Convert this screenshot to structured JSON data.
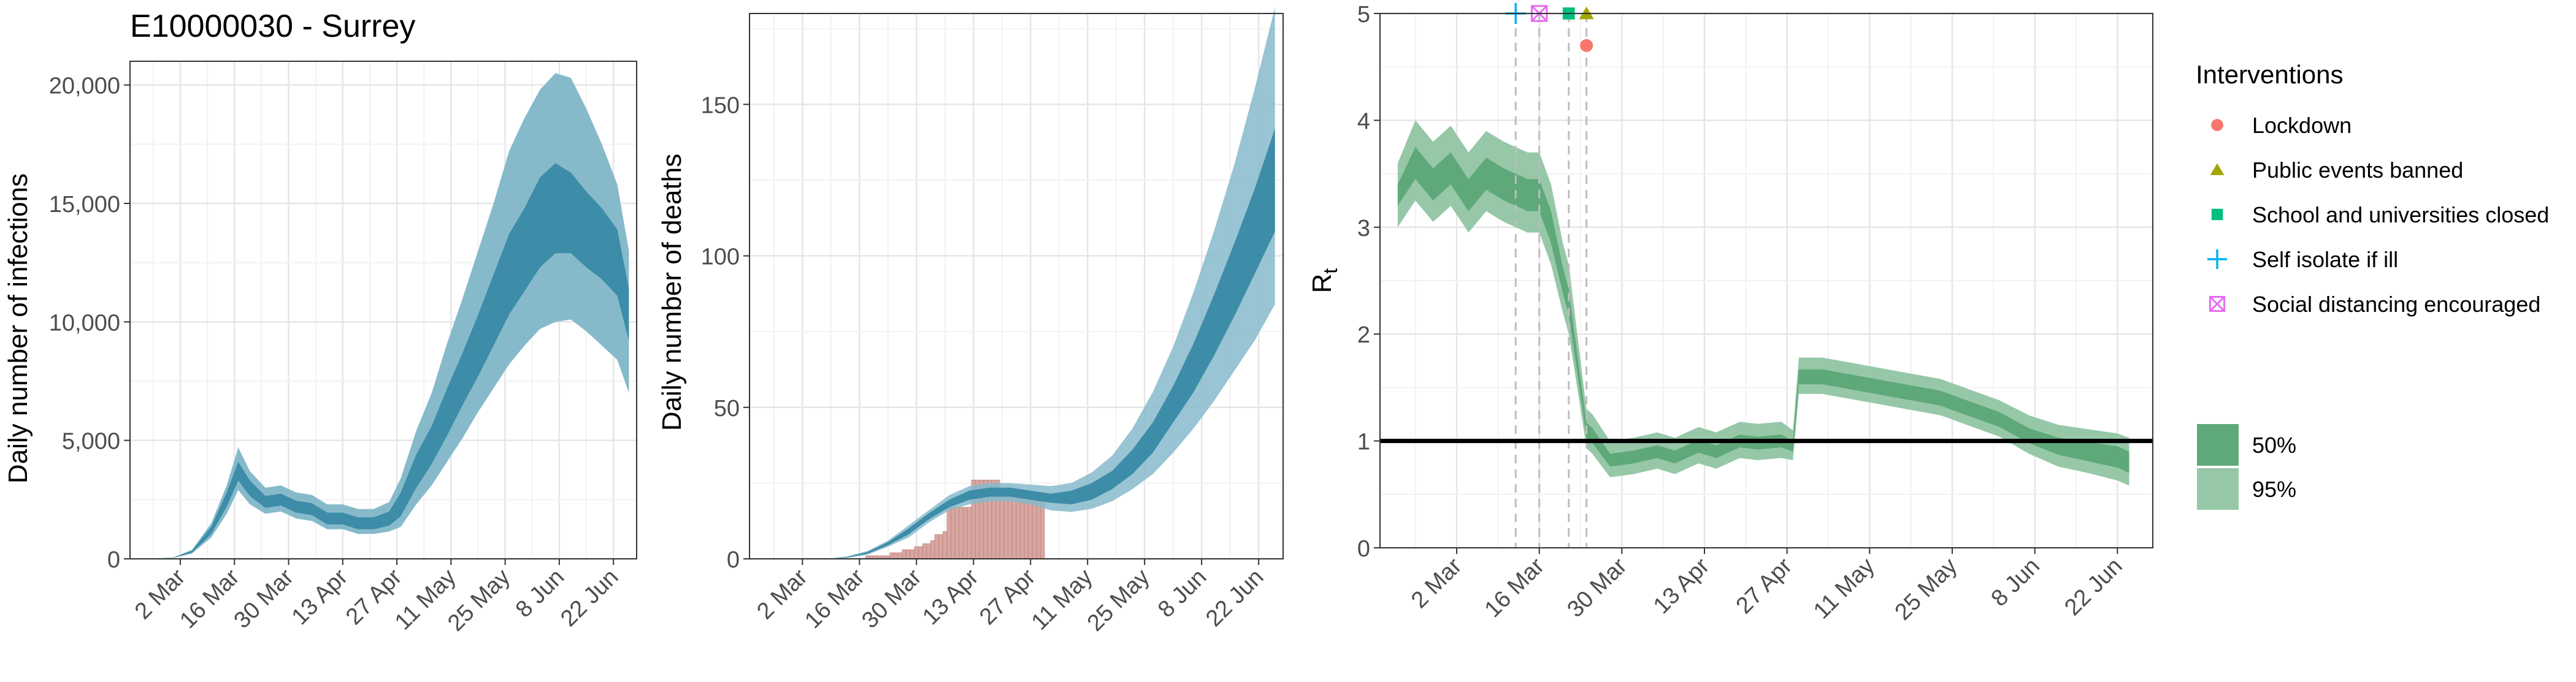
{
  "figure": {
    "region_code": "E10000030",
    "region_name": "Surrey",
    "title": "E10000030 - Surrey"
  },
  "colors": {
    "infections_95": "#86BACB",
    "infections_50": "#3D8CA8",
    "deaths_bars": "#D8A7A3",
    "deaths_bar_edge": "#C98F8A",
    "rt_95": "#96C8A8",
    "rt_50": "#5FA87A",
    "rt_line": "#4E9A69",
    "lockdown": "#F8766D",
    "public_events": "#A3A500",
    "schools": "#00BF7D",
    "self_isolate": "#00B0F6",
    "social_distancing": "#E76BF3",
    "grid_major": "#E6E6E6",
    "grid_minor": "#F2F2F2",
    "axis_text": "#4D4D4D"
  },
  "x_ticks": [
    "2 Mar",
    "16 Mar",
    "30 Mar",
    "13 Apr",
    "27 Apr",
    "11 May",
    "25 May",
    "8 Jun",
    "22 Jun"
  ],
  "chart_data": [
    {
      "type": "area",
      "name": "infections",
      "title": "E10000030 - Surrey",
      "xlabel": "",
      "ylabel": "Daily number of infections",
      "x_range": [
        "2020-02-18",
        "2020-06-28"
      ],
      "ylim": [
        0,
        21000
      ],
      "y_ticks": [
        "0",
        "5,000",
        "10,000",
        "15,000",
        "20,000"
      ],
      "y_tick_values": [
        0,
        5000,
        10000,
        15000,
        20000
      ],
      "x": [
        "2020-02-22",
        "2020-02-29",
        "2020-03-05",
        "2020-03-10",
        "2020-03-14",
        "2020-03-17",
        "2020-03-20",
        "2020-03-24",
        "2020-03-28",
        "2020-04-01",
        "2020-04-05",
        "2020-04-09",
        "2020-04-13",
        "2020-04-17",
        "2020-04-21",
        "2020-04-25",
        "2020-04-28",
        "2020-05-02",
        "2020-05-06",
        "2020-05-10",
        "2020-05-14",
        "2020-05-18",
        "2020-05-22",
        "2020-05-26",
        "2020-05-30",
        "2020-06-03",
        "2020-06-07",
        "2020-06-11",
        "2020-06-15",
        "2020-06-19",
        "2020-06-23",
        "2020-06-26"
      ],
      "median": [
        0,
        40,
        300,
        1200,
        2500,
        3700,
        3000,
        2400,
        2500,
        2200,
        2100,
        1700,
        1700,
        1500,
        1500,
        1700,
        2300,
        3700,
        4800,
        6200,
        7600,
        9000,
        10500,
        12000,
        13000,
        14200,
        14800,
        14600,
        13900,
        13300,
        12500,
        10300
      ],
      "ci50": [
        [
          0,
          35,
          260,
          1050,
          2200,
          3300,
          2650,
          2150,
          2250,
          1950,
          1850,
          1450,
          1450,
          1250,
          1250,
          1400,
          1800,
          3000,
          4000,
          5200,
          6500,
          7700,
          9000,
          10300,
          11300,
          12300,
          12900,
          12900,
          12300,
          11800,
          11100,
          9200
        ],
        [
          0,
          45,
          340,
          1350,
          2800,
          4100,
          3300,
          2650,
          2750,
          2450,
          2350,
          1950,
          1950,
          1750,
          1750,
          2000,
          2800,
          4400,
          5600,
          7200,
          8700,
          10300,
          12000,
          13700,
          14800,
          16100,
          16700,
          16300,
          15500,
          14800,
          13900,
          11400
        ]
      ],
      "ci95": [
        [
          0,
          30,
          220,
          900,
          1900,
          2900,
          2300,
          1900,
          2000,
          1700,
          1600,
          1250,
          1250,
          1050,
          1050,
          1150,
          1350,
          2300,
          3100,
          4100,
          5100,
          6200,
          7200,
          8200,
          9000,
          9700,
          10000,
          10100,
          9600,
          9000,
          8400,
          7000
        ],
        [
          0,
          50,
          380,
          1500,
          3100,
          4700,
          3700,
          3000,
          3100,
          2800,
          2700,
          2300,
          2300,
          2100,
          2100,
          2400,
          3400,
          5400,
          7000,
          9100,
          11000,
          13000,
          15000,
          17200,
          18600,
          19800,
          20500,
          20300,
          19000,
          17500,
          15800,
          13000
        ]
      ]
    },
    {
      "type": "area",
      "name": "deaths",
      "xlabel": "",
      "ylabel": "Daily number of deaths",
      "x_range": [
        "2020-02-18",
        "2020-06-28"
      ],
      "ylim": [
        0,
        180
      ],
      "y_ticks": [
        "0",
        "50",
        "100",
        "150"
      ],
      "y_tick_values": [
        0,
        50,
        100,
        150
      ],
      "observed_deaths": {
        "x": [
          "2020-03-16",
          "2020-03-17",
          "2020-03-18",
          "2020-03-19",
          "2020-03-20",
          "2020-03-21",
          "2020-03-22",
          "2020-03-23",
          "2020-03-24",
          "2020-03-25",
          "2020-03-26",
          "2020-03-27",
          "2020-03-28",
          "2020-03-29",
          "2020-03-30",
          "2020-03-31",
          "2020-04-01",
          "2020-04-02",
          "2020-04-03",
          "2020-04-04",
          "2020-04-05",
          "2020-04-06",
          "2020-04-07",
          "2020-04-08",
          "2020-04-09",
          "2020-04-10",
          "2020-04-11",
          "2020-04-12",
          "2020-04-13",
          "2020-04-14",
          "2020-04-15",
          "2020-04-16",
          "2020-04-17",
          "2020-04-18",
          "2020-04-19",
          "2020-04-20",
          "2020-04-21",
          "2020-04-22",
          "2020-04-23",
          "2020-04-24",
          "2020-04-25",
          "2020-04-26",
          "2020-04-27",
          "2020-04-28",
          "2020-04-29",
          "2020-04-30"
        ],
        "values": [
          0,
          0,
          1,
          1,
          1,
          1,
          1,
          1,
          2,
          2,
          2,
          3,
          3,
          3,
          4,
          4,
          5,
          5,
          6,
          8,
          8,
          9,
          17,
          17,
          17,
          17,
          17,
          17,
          26,
          26,
          26,
          26,
          26,
          26,
          26,
          22,
          22,
          22,
          22,
          22,
          22,
          22,
          22,
          22,
          22,
          22
        ]
      },
      "x": [
        "2020-03-01",
        "2020-03-08",
        "2020-03-13",
        "2020-03-18",
        "2020-03-23",
        "2020-03-28",
        "2020-04-02",
        "2020-04-07",
        "2020-04-12",
        "2020-04-17",
        "2020-04-22",
        "2020-04-27",
        "2020-05-02",
        "2020-05-07",
        "2020-05-12",
        "2020-05-17",
        "2020-05-22",
        "2020-05-27",
        "2020-06-01",
        "2020-06-06",
        "2020-06-11",
        "2020-06-16",
        "2020-06-21",
        "2020-06-26"
      ],
      "median": [
        0,
        0,
        0.5,
        2,
        5,
        9,
        14,
        18,
        21,
        22,
        22,
        21,
        20,
        20,
        22,
        26,
        32,
        40,
        51,
        63,
        77,
        92,
        108,
        125
      ],
      "ci50": [
        [
          0,
          0,
          0.4,
          1.7,
          4.5,
          8,
          13,
          17,
          19.5,
          20.5,
          20.5,
          19.5,
          18.5,
          18,
          19.5,
          23,
          28,
          35,
          45,
          55,
          67,
          80,
          94,
          108
        ],
        [
          0,
          0,
          0.6,
          2.3,
          5.5,
          10,
          15,
          19.5,
          22.5,
          23.5,
          23.5,
          22.5,
          21.5,
          22.5,
          25,
          29,
          36,
          45,
          57,
          71,
          87,
          104,
          122,
          142
        ]
      ],
      "ci95": [
        [
          0,
          0,
          0.3,
          1.4,
          4,
          7,
          12,
          16,
          18,
          19,
          19,
          18,
          16,
          15.5,
          16.5,
          19,
          23,
          28,
          35,
          43,
          52,
          62,
          72,
          84
        ],
        [
          0,
          0,
          0.8,
          2.6,
          6,
          11,
          16,
          21,
          24,
          25,
          25,
          24.5,
          24,
          25,
          28.5,
          34,
          43,
          55,
          70,
          88,
          108,
          130,
          155,
          182
        ]
      ]
    },
    {
      "type": "line",
      "name": "rt",
      "xlabel": "",
      "ylabel": "R",
      "ylabel_subscript": "t",
      "x_range": [
        "2020-02-18",
        "2020-06-28"
      ],
      "ylim": [
        0,
        5
      ],
      "y_ticks": [
        "0",
        "1",
        "2",
        "3",
        "4",
        "5"
      ],
      "y_tick_values": [
        0,
        1,
        2,
        3,
        4,
        5
      ],
      "reference_line": 1,
      "x": [
        "2020-02-21",
        "2020-02-24",
        "2020-02-27",
        "2020-03-01",
        "2020-03-04",
        "2020-03-07",
        "2020-03-10",
        "2020-03-12",
        "2020-03-14",
        "2020-03-16",
        "2020-03-18",
        "2020-03-20",
        "2020-03-21",
        "2020-03-22",
        "2020-03-23",
        "2020-03-24",
        "2020-03-25",
        "2020-03-28",
        "2020-04-01",
        "2020-04-05",
        "2020-04-08",
        "2020-04-12",
        "2020-04-15",
        "2020-04-19",
        "2020-04-22",
        "2020-04-26",
        "2020-04-28",
        "2020-04-29",
        "2020-05-03",
        "2020-05-08",
        "2020-05-13",
        "2020-05-18",
        "2020-05-23",
        "2020-05-28",
        "2020-06-02",
        "2020-06-07",
        "2020-06-12",
        "2020-06-17",
        "2020-06-22",
        "2020-06-24"
      ],
      "median": [
        3.3,
        3.6,
        3.4,
        3.55,
        3.3,
        3.5,
        3.4,
        3.35,
        3.3,
        3.3,
        3.0,
        2.5,
        2.3,
        1.9,
        1.5,
        1.1,
        1.05,
        0.82,
        0.85,
        0.9,
        0.85,
        0.95,
        0.9,
        1.0,
        0.98,
        1.0,
        0.95,
        1.6,
        1.6,
        1.55,
        1.5,
        1.45,
        1.4,
        1.3,
        1.2,
        1.05,
        0.95,
        0.9,
        0.85,
        0.8
      ],
      "ci50": [
        [
          3.2,
          3.45,
          3.25,
          3.4,
          3.15,
          3.35,
          3.25,
          3.2,
          3.15,
          3.15,
          2.85,
          2.38,
          2.18,
          1.8,
          1.42,
          1.03,
          0.98,
          0.76,
          0.79,
          0.84,
          0.79,
          0.89,
          0.84,
          0.94,
          0.92,
          0.94,
          0.9,
          1.53,
          1.53,
          1.48,
          1.43,
          1.38,
          1.33,
          1.23,
          1.13,
          0.98,
          0.87,
          0.81,
          0.75,
          0.7
        ],
        [
          3.4,
          3.75,
          3.55,
          3.7,
          3.45,
          3.65,
          3.55,
          3.5,
          3.45,
          3.45,
          3.15,
          2.62,
          2.42,
          2.0,
          1.58,
          1.17,
          1.12,
          0.88,
          0.91,
          0.96,
          0.91,
          1.01,
          0.96,
          1.06,
          1.04,
          1.06,
          1.0,
          1.67,
          1.67,
          1.62,
          1.57,
          1.52,
          1.47,
          1.37,
          1.27,
          1.12,
          1.03,
          0.99,
          0.95,
          0.9
        ]
      ],
      "ci95": [
        [
          3.0,
          3.25,
          3.05,
          3.2,
          2.95,
          3.15,
          3.05,
          3.0,
          2.95,
          2.95,
          2.65,
          2.2,
          2.0,
          1.65,
          1.3,
          0.93,
          0.88,
          0.66,
          0.69,
          0.74,
          0.69,
          0.79,
          0.74,
          0.84,
          0.82,
          0.84,
          0.82,
          1.44,
          1.44,
          1.39,
          1.34,
          1.29,
          1.24,
          1.14,
          1.04,
          0.88,
          0.76,
          0.7,
          0.63,
          0.58
        ],
        [
          3.6,
          4.0,
          3.8,
          3.95,
          3.7,
          3.9,
          3.8,
          3.75,
          3.7,
          3.7,
          3.4,
          2.85,
          2.65,
          2.2,
          1.75,
          1.3,
          1.25,
          1.0,
          1.03,
          1.08,
          1.03,
          1.13,
          1.08,
          1.18,
          1.16,
          1.18,
          1.1,
          1.78,
          1.78,
          1.73,
          1.68,
          1.63,
          1.58,
          1.48,
          1.38,
          1.24,
          1.15,
          1.11,
          1.07,
          1.03
        ]
      ],
      "interventions": [
        {
          "name": "Self isolate if ill",
          "date": "2020-03-12",
          "marker": "plus",
          "color": "#00B0F6",
          "y": 5.0
        },
        {
          "name": "Social distancing encouraged",
          "date": "2020-03-16",
          "marker": "boxed-x",
          "color": "#E76BF3",
          "y": 5.0
        },
        {
          "name": "School and universities closed",
          "date": "2020-03-21",
          "marker": "square",
          "color": "#00BF7D",
          "y": 5.0
        },
        {
          "name": "Public events banned",
          "date": "2020-03-24",
          "marker": "triangle",
          "color": "#A3A500",
          "y": 5.0
        },
        {
          "name": "Lockdown",
          "date": "2020-03-24",
          "marker": "circle",
          "color": "#F8766D",
          "y": 4.7
        }
      ]
    }
  ],
  "legend": {
    "title": "Interventions",
    "items": [
      {
        "label": "Lockdown",
        "marker": "circle",
        "color": "#F8766D"
      },
      {
        "label": "Public events banned",
        "marker": "triangle",
        "color": "#A3A500"
      },
      {
        "label": "School and universities closed",
        "marker": "square",
        "color": "#00BF7D"
      },
      {
        "label": "Self isolate if ill",
        "marker": "plus",
        "color": "#00B0F6"
      },
      {
        "label": "Social distancing encouraged",
        "marker": "boxed-x",
        "color": "#E76BF3"
      }
    ],
    "ci_items": [
      {
        "label": "50%",
        "color": "#5FA87A"
      },
      {
        "label": "95%",
        "color": "#96C8A8"
      }
    ]
  }
}
